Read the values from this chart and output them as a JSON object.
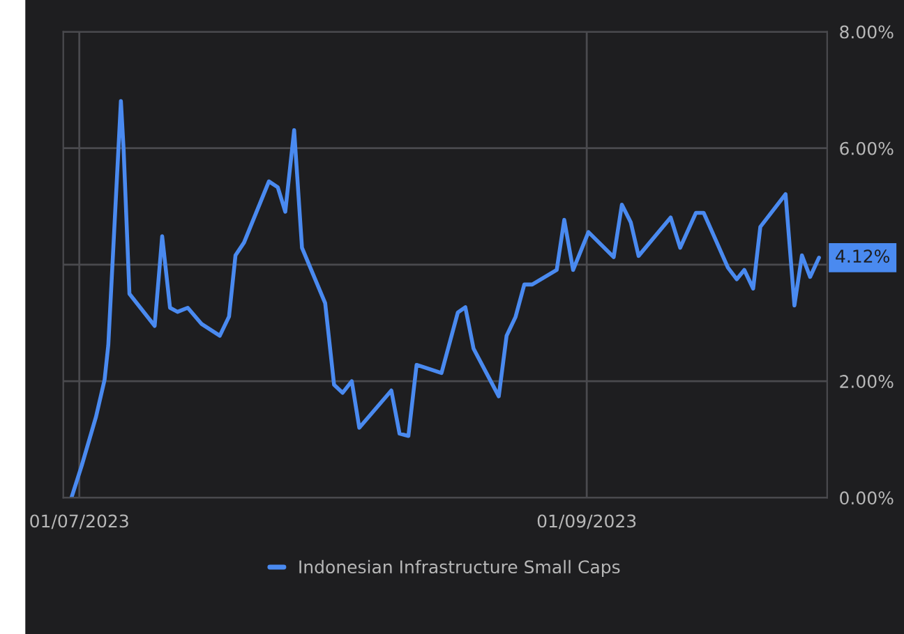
{
  "chart_data": {
    "type": "line",
    "x": [
      "2023-06-30T01:00",
      "2023-07-01T07:00",
      "2023-07-03T01:00",
      "2023-07-04T02:00",
      "2023-07-04T13:00",
      "2023-07-06T02:00",
      "2023-07-06T10:00",
      "2023-07-07T03:00",
      "2023-07-10T05:00",
      "2023-07-11T03:00",
      "2023-07-12T02:00",
      "2023-07-13T00:00",
      "2023-07-14T06:00",
      "2023-07-15T23:00",
      "2023-07-18T04:00",
      "2023-07-19T07:00",
      "2023-07-20T02:00",
      "2023-07-21T03:00",
      "2023-07-24T04:00",
      "2023-07-25T06:00",
      "2023-07-26T04:00",
      "2023-07-27T06:00",
      "2023-07-28T05:00",
      "2023-07-31T01:00",
      "2023-08-01T03:00",
      "2023-08-02T04:00",
      "2023-08-03T07:00",
      "2023-08-04T05:00",
      "2023-08-08T03:00",
      "2023-08-09T03:00",
      "2023-08-10T05:00",
      "2023-08-11T05:00",
      "2023-08-14T06:00",
      "2023-08-16T06:00",
      "2023-08-17T04:00",
      "2023-08-18T04:00",
      "2023-08-21T06:00",
      "2023-08-22T05:00",
      "2023-08-23T07:00",
      "2023-08-24T09:00",
      "2023-08-25T08:00",
      "2023-08-28T08:00",
      "2023-08-29T06:00",
      "2023-08-30T08:00",
      "2023-09-01T05:00",
      "2023-09-04T07:00",
      "2023-09-05T07:00",
      "2023-09-06T09:00",
      "2023-09-07T08:00",
      "2023-09-11T06:00",
      "2023-09-12T10:00",
      "2023-09-14T08:00",
      "2023-09-15T07:00",
      "2023-09-18T06:00",
      "2023-09-19T08:00",
      "2023-09-20T06:00",
      "2023-09-21T08:00",
      "2023-09-22T05:00",
      "2023-09-25T07:00",
      "2023-09-26T09:00",
      "2023-09-27T07:00",
      "2023-09-28T07:00",
      "2023-09-29T09:00"
    ],
    "series": [
      {
        "name": "Indonesian Infrastructure Small Caps",
        "color": "#4a8af0",
        "values": [
          0.0,
          0.55,
          1.39,
          2.02,
          2.62,
          6.81,
          5.97,
          3.5,
          2.95,
          4.49,
          3.26,
          3.19,
          3.26,
          2.98,
          2.78,
          3.11,
          4.16,
          4.38,
          5.43,
          5.33,
          4.91,
          6.31,
          4.29,
          3.34,
          1.94,
          1.8,
          2.0,
          1.2,
          1.84,
          1.1,
          1.06,
          2.28,
          2.14,
          3.18,
          3.27,
          2.56,
          1.74,
          2.78,
          3.1,
          3.66,
          3.66,
          3.91,
          4.77,
          3.91,
          4.56,
          4.13,
          5.03,
          4.73,
          4.15,
          4.81,
          4.29,
          4.89,
          4.89,
          3.95,
          3.75,
          3.91,
          3.59,
          4.65,
          5.21,
          3.3,
          4.16,
          3.79,
          4.12
        ]
      }
    ],
    "annotations": [
      "4.12%"
    ],
    "xlim": [
      "2023-06-29T01:00",
      "2023-09-30T09:00"
    ],
    "xticks": [
      {
        "value": "2023-07-01",
        "label": "01/07/2023"
      },
      {
        "value": "2023-09-01",
        "label": "01/09/2023"
      }
    ],
    "ylim": [
      0,
      8
    ],
    "yticks": [
      {
        "value": 0,
        "label": "0.00%"
      },
      {
        "value": 2,
        "label": "2.00%"
      },
      {
        "value": 4,
        "label": null
      },
      {
        "value": 6,
        "label": "6.00%"
      },
      {
        "value": 8,
        "label": "8.00%"
      }
    ],
    "grid": true,
    "legend": "bottom",
    "line_style": "solid",
    "marker": "none"
  }
}
